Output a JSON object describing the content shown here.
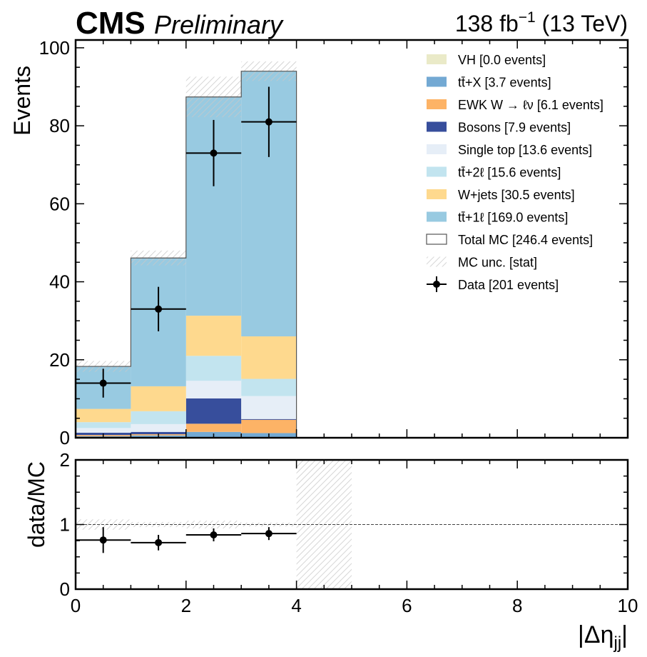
{
  "header": {
    "experiment": "CMS",
    "status": "Preliminary",
    "lumi_value": "138 fb",
    "lumi_exp": "−1",
    "energy": "(13 TeV)"
  },
  "chart_data": [
    {
      "type": "bar",
      "subtype": "stacked-histogram",
      "ylabel": "Events",
      "xlim": [
        0,
        10
      ],
      "ylim": [
        0,
        102
      ],
      "yticks": [
        0,
        20,
        40,
        60,
        80,
        100
      ],
      "bin_edges": [
        0,
        1,
        2,
        3,
        4,
        5,
        6,
        7,
        8,
        9,
        10
      ],
      "series": [
        {
          "name": "tt̄+X [3.7 events]",
          "color": "#73a9d3",
          "values": [
            0.4,
            0.6,
            1.5,
            1.2,
            0,
            0,
            0,
            0,
            0,
            0
          ]
        },
        {
          "name": "EWK W → ℓν [6.1 events]",
          "color": "#fdb366",
          "values": [
            0.3,
            0.3,
            2.1,
            3.4,
            0,
            0,
            0,
            0,
            0,
            0
          ]
        },
        {
          "name": "Bosons [7.9 events]",
          "color": "#374e9c",
          "values": [
            0.6,
            0.6,
            6.5,
            0.2,
            0,
            0,
            0,
            0,
            0,
            0
          ]
        },
        {
          "name": "Single top [13.6 events]",
          "color": "#e6eef7",
          "values": [
            1.2,
            2.0,
            4.5,
            5.9,
            0,
            0,
            0,
            0,
            0,
            0
          ]
        },
        {
          "name": "tt̄+2ℓ [15.6 events]",
          "color": "#c2e4ef",
          "values": [
            1.5,
            3.3,
            6.4,
            4.4,
            0,
            0,
            0,
            0,
            0,
            0
          ]
        },
        {
          "name": "W+jets [30.5 events]",
          "color": "#fed98e",
          "values": [
            3.4,
            6.4,
            10.3,
            10.9,
            0,
            0,
            0,
            0,
            0,
            0
          ]
        },
        {
          "name": "VH [0.0 events]",
          "color": "#eaeac8",
          "values": [
            0,
            0,
            0,
            0,
            0,
            0,
            0,
            0,
            0,
            0
          ]
        },
        {
          "name": "tt̄+1ℓ [169.0 events]",
          "color": "#98cae1",
          "values": [
            10.9,
            32.9,
            56.1,
            68.0,
            0,
            0,
            0,
            0,
            0,
            0
          ]
        }
      ],
      "total_mc": {
        "name": "Total MC [246.4 events]",
        "values": [
          18.3,
          46.1,
          87.4,
          94.0,
          0,
          0,
          0,
          0,
          0,
          0
        ],
        "unc": [
          1.4,
          1.9,
          5.2,
          2.5,
          0,
          0,
          0,
          0,
          0,
          0
        ]
      },
      "mc_unc_label": "MC unc. [stat]",
      "data": {
        "name": "Data [201 events]",
        "x": [
          0.5,
          1.5,
          2.5,
          3.5
        ],
        "y": [
          14,
          33,
          73,
          81
        ],
        "yerr": [
          3.7,
          5.7,
          8.5,
          9.0
        ]
      },
      "legend_order": [
        "VH [0.0 events]",
        "tt̄+X [3.7 events]",
        "EWK W → ℓν [6.1 events]",
        "Bosons [7.9 events]",
        "Single top [13.6 events]",
        "tt̄+2ℓ [15.6 events]",
        "W+jets [30.5 events]",
        "tt̄+1ℓ [169.0 events]",
        "Total MC [246.4 events]",
        "MC unc. [stat]",
        "Data [201 events]"
      ],
      "legend_position": "top-right"
    },
    {
      "type": "scatter",
      "subtype": "ratio",
      "ylabel": "data/MC",
      "xlabel": "|Δη",
      "xlabel_sub": "jj",
      "xlim": [
        0,
        10
      ],
      "ylim": [
        0,
        2
      ],
      "yticks": [
        0,
        1,
        2
      ],
      "xticks": [
        0,
        2,
        4,
        6,
        8,
        10
      ],
      "reference_line": 1,
      "x": [
        0.5,
        1.5,
        2.5,
        3.5
      ],
      "y": [
        0.76,
        0.72,
        0.84,
        0.86
      ],
      "yerr": [
        0.2,
        0.12,
        0.1,
        0.1
      ],
      "unc_band_bins": [
        {
          "x0": 0,
          "x1": 1,
          "lo": 0.92,
          "hi": 1.08
        },
        {
          "x0": 1,
          "x1": 2,
          "lo": 0.96,
          "hi": 1.04
        },
        {
          "x0": 2,
          "x1": 3,
          "lo": 0.94,
          "hi": 1.06
        },
        {
          "x0": 3,
          "x1": 4,
          "lo": 0.97,
          "hi": 1.03
        },
        {
          "x0": 4,
          "x1": 5,
          "lo": 0,
          "hi": 2
        }
      ]
    }
  ]
}
